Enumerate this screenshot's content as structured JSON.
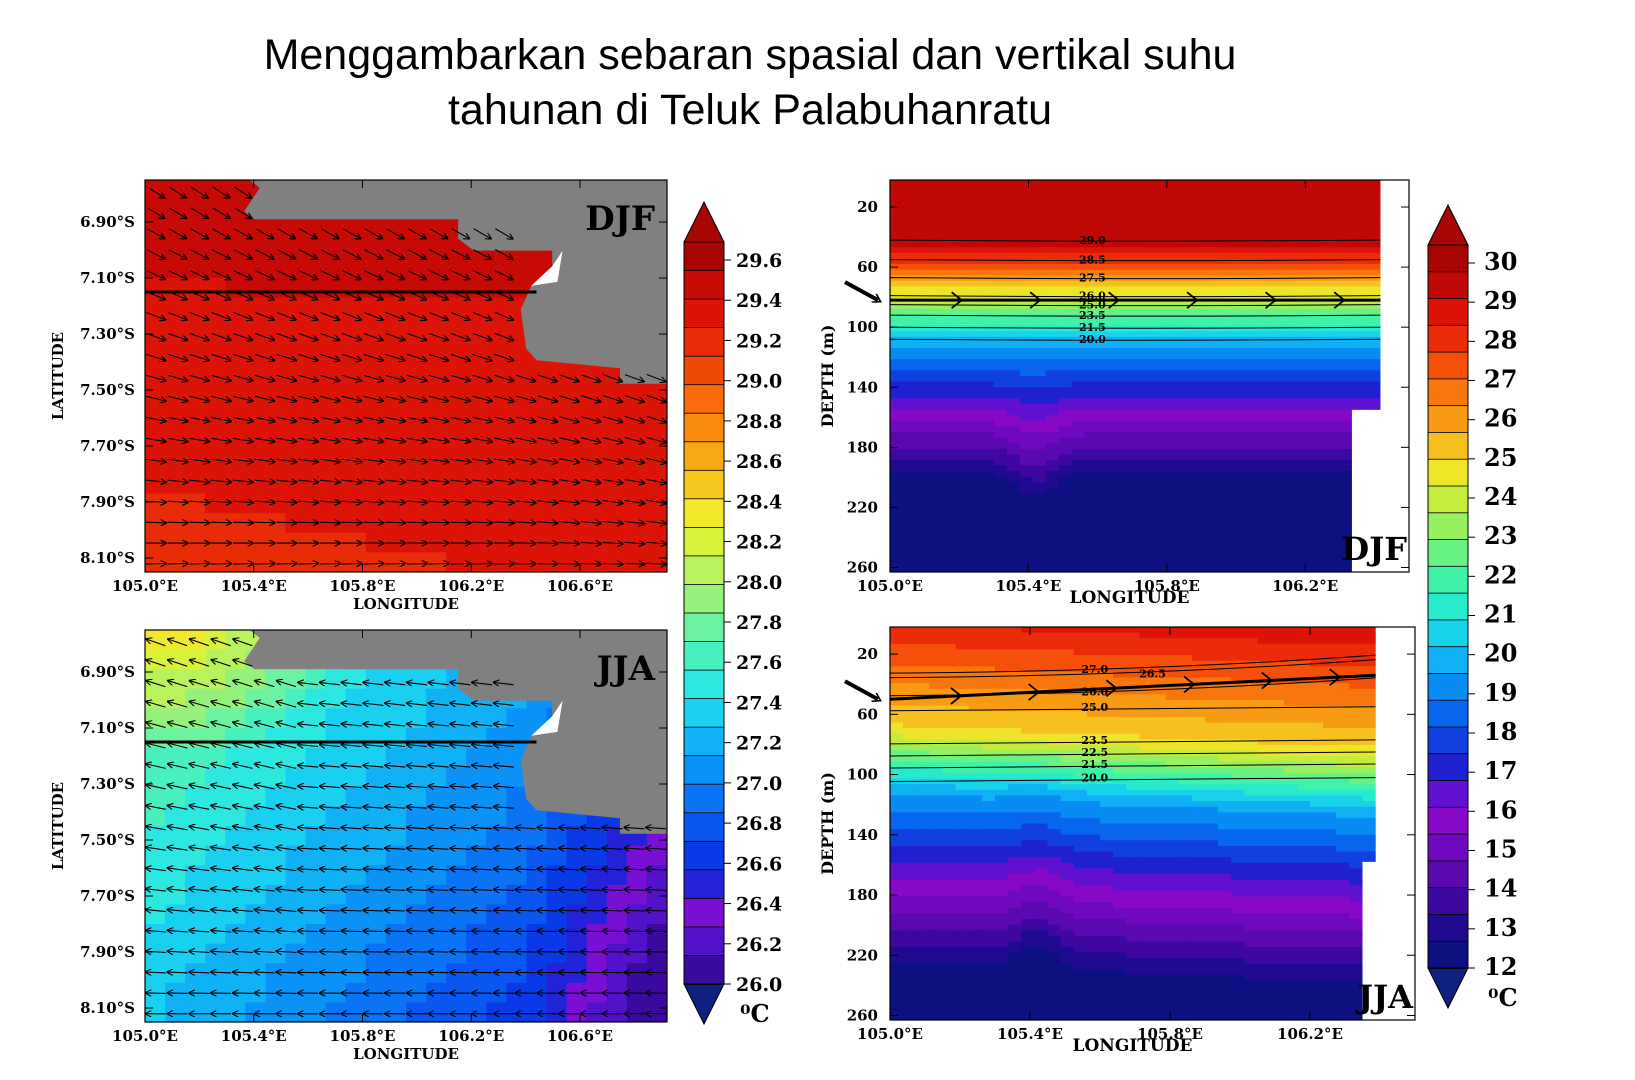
{
  "title": {
    "line1": "Menggambarkan sebaran spasial dan vertikal suhu",
    "line2": "tahunan di Teluk Palabuhanratu"
  },
  "colors": {
    "land": "#808080",
    "surface_scale": [
      "#3a0a9e",
      "#5112c8",
      "#7a0fd4",
      "#2422d8",
      "#0a3ae8",
      "#0a56f0",
      "#0a74f5",
      "#0a92f7",
      "#10b2f5",
      "#1ad0f0",
      "#2ce8e0",
      "#48f0c0",
      "#6cf2a0",
      "#94f27c",
      "#b8f25c",
      "#daf23c",
      "#f2e82c",
      "#f6c81e",
      "#f8a814",
      "#f88a0e",
      "#f86a0a",
      "#f04a08",
      "#e82c08",
      "#dc1408",
      "#c80a06",
      "#a80604"
    ],
    "depth_scale": [
      "#0c1080",
      "#200a90",
      "#3c08a0",
      "#5a08b0",
      "#7008c0",
      "#8808c8",
      "#6010d0",
      "#2020d0",
      "#1040e0",
      "#0866ee",
      "#088cf4",
      "#10b0f4",
      "#18d4ea",
      "#28eacc",
      "#40f2a8",
      "#68f284",
      "#96f060",
      "#c4ec3c",
      "#eee428",
      "#f6c01e",
      "#f89a14",
      "#f8760e",
      "#f4500a",
      "#ea2c08",
      "#dc1408",
      "#c00806",
      "#a80604"
    ]
  },
  "chart_data": [
    {
      "type": "heatmap",
      "panel_label": "DJF",
      "xlabel": "LONGITUDE",
      "ylabel": "LATITUDE",
      "x_ticks": [
        "105.0°E",
        "105.4°E",
        "105.8°E",
        "106.2°E",
        "106.6°E"
      ],
      "x_tick_values": [
        105.0,
        105.4,
        105.8,
        106.2,
        106.6
      ],
      "y_ticks": [
        "6.90°S",
        "7.10°S",
        "7.30°S",
        "7.50°S",
        "7.70°S",
        "7.90°S",
        "8.10°S"
      ],
      "y_tick_values": [
        6.9,
        7.1,
        7.3,
        7.5,
        7.7,
        7.9,
        8.1
      ],
      "xlim": [
        105.0,
        106.92
      ],
      "ylim": [
        8.15,
        6.75
      ],
      "temperature_range_c": [
        29.3,
        29.6
      ],
      "section_line_lat": 7.15,
      "current_vectors": "southeastward near coast, eastward offshore"
    },
    {
      "type": "heatmap",
      "panel_label": "JJA",
      "xlabel": "LONGITUDE",
      "ylabel": "LATITUDE",
      "x_ticks": [
        "105.0°E",
        "105.4°E",
        "105.8°E",
        "106.2°E",
        "106.6°E"
      ],
      "x_tick_values": [
        105.0,
        105.4,
        105.8,
        106.2,
        106.6
      ],
      "y_ticks": [
        "6.90°S",
        "7.10°S",
        "7.30°S",
        "7.50°S",
        "7.70°S",
        "7.90°S",
        "8.10°S"
      ],
      "y_tick_values": [
        6.9,
        7.1,
        7.3,
        7.5,
        7.7,
        7.9,
        8.1
      ],
      "xlim": [
        105.0,
        106.92
      ],
      "ylim": [
        8.15,
        6.75
      ],
      "temperature_range_c": [
        26.3,
        28.3
      ],
      "section_line_lat": 7.15,
      "current_vectors": "westward"
    },
    {
      "type": "heatmap",
      "panel_label": "DJF",
      "xlabel": "LONGITUDE",
      "ylabel": "DEPTH (m)",
      "x_ticks": [
        "105.0°E",
        "105.4°E",
        "105.8°E",
        "106.2°E"
      ],
      "x_tick_values": [
        105.0,
        105.4,
        105.8,
        106.2
      ],
      "y_ticks": [
        "20",
        "60",
        "100",
        "140",
        "180",
        "220",
        "260"
      ],
      "y_tick_values": [
        20,
        60,
        100,
        140,
        180,
        220,
        260
      ],
      "xlim": [
        105.0,
        106.5
      ],
      "ylim": [
        263,
        2
      ],
      "contours": [
        {
          "label": "29.0",
          "depth": 42
        },
        {
          "label": "28.5",
          "depth": 55
        },
        {
          "label": "27.5",
          "depth": 67
        },
        {
          "label": "26.0",
          "depth": 79
        },
        {
          "label": "25.0",
          "depth": 85
        },
        {
          "label": "23.5",
          "depth": 92
        },
        {
          "label": "21.5",
          "depth": 100
        },
        {
          "label": "20.0",
          "depth": 108
        }
      ],
      "thermocline_arrow_depth": 82
    },
    {
      "type": "heatmap",
      "panel_label": "JJA",
      "xlabel": "LONGITUDE",
      "ylabel": "DEPTH (m)",
      "x_ticks": [
        "105.0°E",
        "105.4°E",
        "105.8°E",
        "106.2°E"
      ],
      "x_tick_values": [
        105.0,
        105.4,
        105.8,
        106.2
      ],
      "y_ticks": [
        "20",
        "60",
        "100",
        "140",
        "180",
        "220",
        "260"
      ],
      "y_tick_values": [
        20,
        60,
        100,
        140,
        180,
        220,
        260
      ],
      "xlim": [
        105.0,
        106.5
      ],
      "ylim": [
        263,
        2
      ],
      "contours": [
        {
          "label": "27.0",
          "depth": 30
        },
        {
          "label": "26.5",
          "depth": 33
        },
        {
          "label": "26.0",
          "depth": 45
        },
        {
          "label": "25.0",
          "depth": 55
        },
        {
          "label": "23.5",
          "depth": 77
        },
        {
          "label": "22.5",
          "depth": 85
        },
        {
          "label": "21.5",
          "depth": 93
        },
        {
          "label": "20.0",
          "depth": 102
        }
      ],
      "thermocline_arrow_depth": 50
    }
  ],
  "colorbar_surface": {
    "labels": [
      "29.6",
      "29.4",
      "29.2",
      "29.0",
      "28.8",
      "28.6",
      "28.4",
      "28.2",
      "28.0",
      "27.8",
      "27.6",
      "27.4",
      "27.2",
      "27.0",
      "26.8",
      "26.6",
      "26.4",
      "26.2",
      "26.0"
    ],
    "min": 26.0,
    "max": 29.6,
    "unit": "⁰C"
  },
  "colorbar_depth": {
    "labels": [
      "30",
      "29",
      "28",
      "27",
      "26",
      "25",
      "24",
      "23",
      "22",
      "21",
      "20",
      "19",
      "18",
      "17",
      "16",
      "15",
      "14",
      "13",
      "12"
    ],
    "min": 12,
    "max": 30,
    "unit": "⁰C"
  }
}
